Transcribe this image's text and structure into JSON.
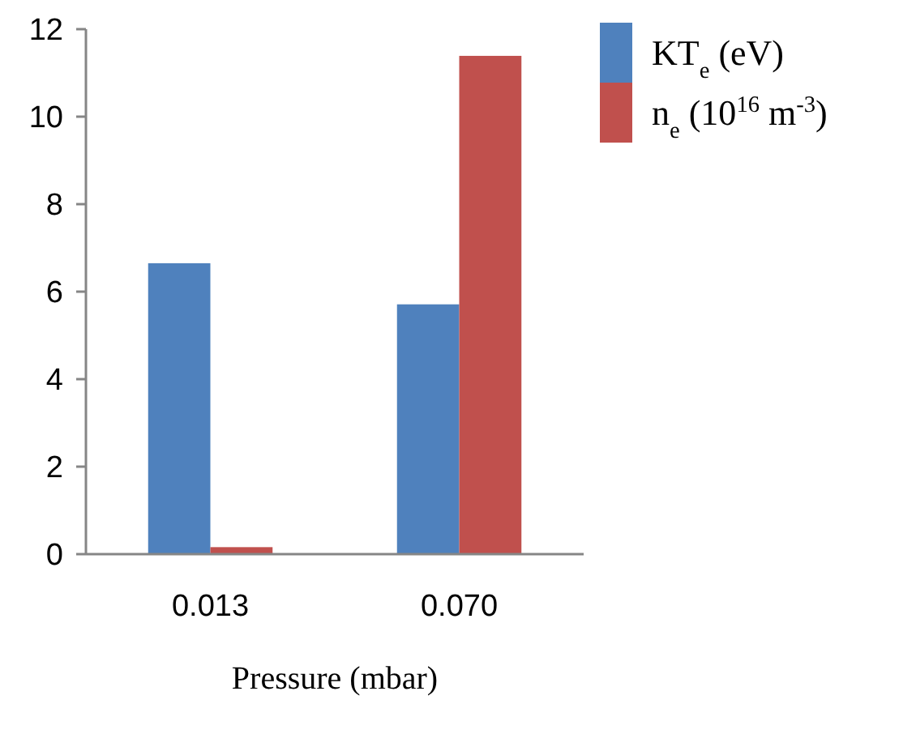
{
  "chart_data": {
    "type": "bar",
    "xlabel": "Pressure (mbar)",
    "categories": [
      "0.013",
      "0.070"
    ],
    "series": [
      {
        "name": "KT$_{e}$ (eV)",
        "color": "#4f81bd",
        "values": [
          6.65,
          5.71
        ]
      },
      {
        "name": "n$_{e}$ (10$^{16}$ m$^{-3}$)",
        "color": "#c0504d",
        "values": [
          0.16,
          11.39
        ]
      }
    ],
    "ylim": [
      0,
      12
    ],
    "yticks": [
      0,
      2,
      4,
      6,
      8,
      10,
      12
    ],
    "grid": false,
    "legend": "top right"
  }
}
